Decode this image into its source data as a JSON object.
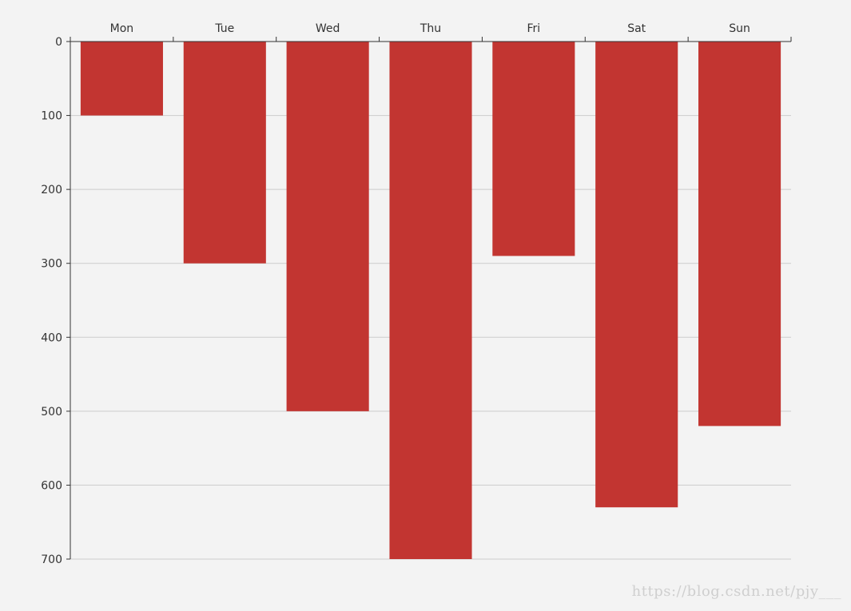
{
  "chart_data": {
    "type": "bar",
    "orientation": "vertical-inverted",
    "categories": [
      "Mon",
      "Tue",
      "Wed",
      "Thu",
      "Fri",
      "Sat",
      "Sun"
    ],
    "values": [
      100,
      300,
      500,
      700,
      290,
      630,
      520
    ],
    "title": "",
    "xlabel": "",
    "ylabel": "",
    "ylim": [
      0,
      700
    ],
    "y_ticks": [
      0,
      100,
      200,
      300,
      400,
      500,
      600,
      700
    ],
    "x_axis_position": "top",
    "y_axis_inverse": true,
    "grid": true
  },
  "colors": {
    "bar": "#c23531",
    "axis": "#333333",
    "grid": "#cccccc",
    "tick_label": "#333333",
    "background": "#f3f3f3"
  },
  "watermark": "https://blog.csdn.net/pjy___"
}
